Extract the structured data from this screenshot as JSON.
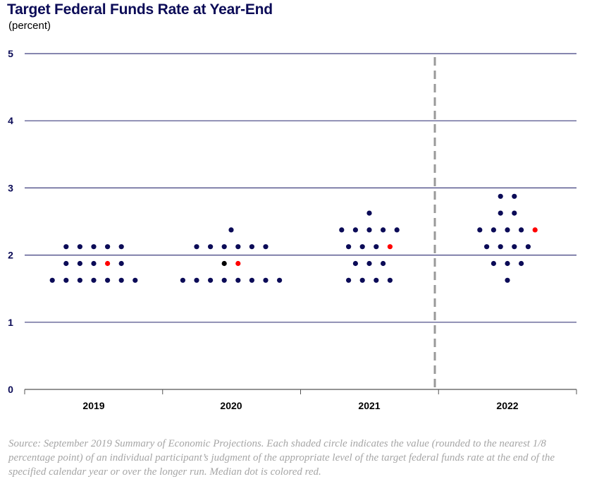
{
  "title": "Target Federal Funds Rate at Year-End",
  "subtitle": "(percent)",
  "source": "Source: September 2019 Summary of Economic Projections. Each shaded circle indicates the value (rounded to the nearest 1/8 percentage point) of an individual participant’s judgment of the appropriate level of the target federal funds rate at the end of the specified calendar year or over the longer run. Median dot is colored red.",
  "colors": {
    "dot": "#0b0b57",
    "median": "#ff0000",
    "black": "#000000",
    "grid": "#3f3f7f",
    "divider": "#999999"
  },
  "chart_data": {
    "type": "scatter",
    "title": "Target Federal Funds Rate at Year-End",
    "ylabel": "(percent)",
    "ylim": [
      0,
      5
    ],
    "yticks": [
      "0",
      "1",
      "2",
      "3",
      "4",
      "5"
    ],
    "categories": [
      "2019",
      "2020",
      "2021",
      "2022"
    ],
    "divider_after": "2021",
    "groups": [
      {
        "year": "2019",
        "rows": [
          {
            "value": 2.125,
            "dots": [
              "navy",
              "navy",
              "navy",
              "navy",
              "navy"
            ]
          },
          {
            "value": 1.875,
            "dots": [
              "navy",
              "navy",
              "navy",
              "red",
              "navy"
            ]
          },
          {
            "value": 1.625,
            "dots": [
              "navy",
              "navy",
              "navy",
              "navy",
              "navy",
              "navy",
              "navy"
            ]
          }
        ]
      },
      {
        "year": "2020",
        "rows": [
          {
            "value": 2.375,
            "dots": [
              "navy"
            ]
          },
          {
            "value": 2.125,
            "dots": [
              "navy",
              "navy",
              "navy",
              "navy",
              "navy",
              "navy"
            ]
          },
          {
            "value": 1.875,
            "dots": [
              "black",
              "red"
            ]
          },
          {
            "value": 1.625,
            "dots": [
              "navy",
              "navy",
              "navy",
              "navy",
              "navy",
              "navy",
              "navy",
              "navy"
            ]
          }
        ]
      },
      {
        "year": "2021",
        "rows": [
          {
            "value": 2.625,
            "dots": [
              "navy"
            ]
          },
          {
            "value": 2.375,
            "dots": [
              "navy",
              "navy",
              "navy",
              "navy",
              "navy"
            ]
          },
          {
            "value": 2.125,
            "dots": [
              "navy",
              "navy",
              "navy",
              "red"
            ]
          },
          {
            "value": 1.875,
            "dots": [
              "navy",
              "navy",
              "navy"
            ]
          },
          {
            "value": 1.625,
            "dots": [
              "navy",
              "navy",
              "navy",
              "navy"
            ]
          }
        ]
      },
      {
        "year": "2022",
        "rows": [
          {
            "value": 2.875,
            "dots": [
              "navy",
              "navy"
            ]
          },
          {
            "value": 2.625,
            "dots": [
              "navy",
              "navy"
            ]
          },
          {
            "value": 2.375,
            "dots": [
              "navy",
              "navy",
              "navy",
              "navy",
              "red"
            ]
          },
          {
            "value": 2.125,
            "dots": [
              "navy",
              "navy",
              "navy",
              "navy"
            ]
          },
          {
            "value": 1.875,
            "dots": [
              "navy",
              "navy",
              "navy"
            ]
          },
          {
            "value": 1.625,
            "dots": [
              "navy"
            ]
          }
        ]
      }
    ]
  }
}
